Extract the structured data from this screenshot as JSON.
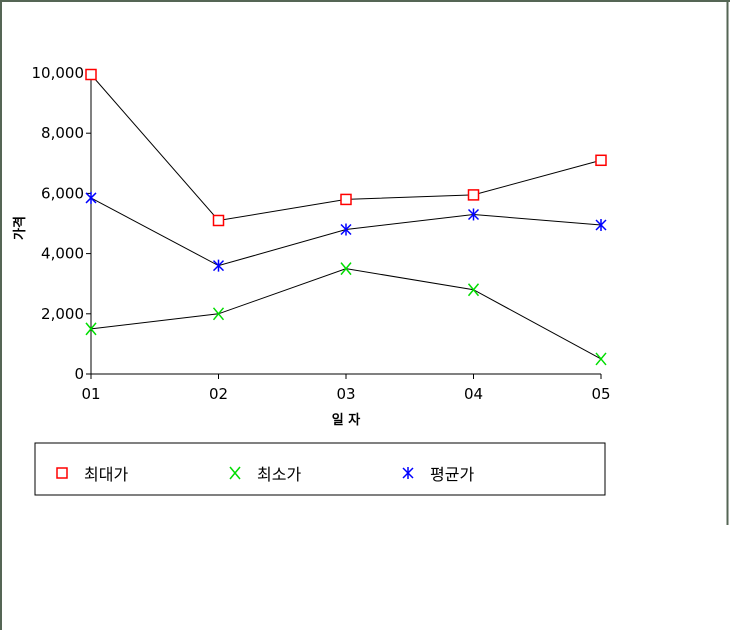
{
  "chart_data": {
    "type": "line",
    "categories": [
      "01",
      "02",
      "03",
      "04",
      "05"
    ],
    "xlabel": "일 자",
    "ylabel": "가격",
    "ylim": [
      0,
      10000
    ],
    "yticks": [
      "0",
      "2,000",
      "4,000",
      "6,000",
      "8,000",
      "10,000"
    ],
    "grid": false,
    "legend_position": "bottom",
    "series": [
      {
        "name": "최대가",
        "values": [
          9950,
          5100,
          5800,
          5950,
          7100
        ],
        "color": "#ff0000",
        "marker": "square"
      },
      {
        "name": "최소가",
        "values": [
          1500,
          2000,
          3500,
          2800,
          500
        ],
        "color": "#00dd00",
        "marker": "x"
      },
      {
        "name": "평균가",
        "values": [
          5850,
          3600,
          4800,
          5300,
          4950
        ],
        "color": "#0000ff",
        "marker": "asterisk"
      }
    ]
  }
}
